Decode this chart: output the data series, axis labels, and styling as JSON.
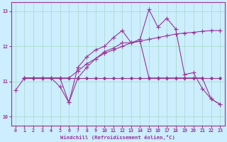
{
  "xlabel": "Windchill (Refroidissement éolien,°C)",
  "bg_color": "#cceeff",
  "line_color": "#993399",
  "grid_color": "#aaddcc",
  "xlim": [
    -0.5,
    23.5
  ],
  "ylim": [
    9.75,
    13.25
  ],
  "xticks": [
    0,
    1,
    2,
    3,
    4,
    5,
    6,
    7,
    8,
    9,
    10,
    11,
    12,
    13,
    14,
    15,
    16,
    17,
    18,
    19,
    20,
    21,
    22,
    23
  ],
  "yticks": [
    10,
    11,
    12,
    13
  ],
  "series": [
    {
      "x": [
        0,
        1,
        2,
        3,
        4,
        5,
        6,
        7,
        8,
        9,
        10,
        11,
        12,
        13,
        14,
        15,
        16,
        17,
        18,
        19,
        20,
        21,
        22,
        23
      ],
      "y": [
        10.75,
        11.1,
        11.1,
        11.1,
        11.1,
        11.1,
        10.4,
        11.4,
        11.7,
        11.9,
        12.0,
        12.25,
        12.45,
        12.1,
        12.2,
        13.05,
        12.55,
        12.8,
        12.5,
        11.2,
        11.25,
        10.8,
        10.5,
        10.35
      ]
    },
    {
      "x": [
        1,
        2,
        3,
        4,
        5,
        6,
        7,
        8,
        9,
        10,
        11,
        12,
        13,
        14,
        15,
        16,
        17,
        18,
        19,
        20,
        21,
        22,
        23
      ],
      "y": [
        11.1,
        11.1,
        11.1,
        11.1,
        11.1,
        11.1,
        11.1,
        11.1,
        11.1,
        11.1,
        11.1,
        11.1,
        11.1,
        11.1,
        11.1,
        11.1,
        11.1,
        11.1,
        11.1,
        11.1,
        11.1,
        11.1,
        11.1
      ]
    },
    {
      "x": [
        1,
        2,
        3,
        4,
        5,
        6,
        7,
        8,
        9,
        10,
        11,
        12,
        13,
        14,
        15,
        16,
        17,
        18,
        19,
        20,
        21,
        22,
        23
      ],
      "y": [
        11.1,
        11.1,
        11.1,
        11.1,
        11.1,
        11.1,
        11.3,
        11.5,
        11.65,
        11.8,
        11.9,
        12.0,
        12.1,
        12.15,
        12.2,
        12.25,
        12.3,
        12.35,
        12.38,
        12.4,
        12.43,
        12.45,
        12.45
      ]
    },
    {
      "x": [
        1,
        2,
        3,
        4,
        5,
        6,
        7,
        8,
        9,
        10,
        11,
        12,
        13,
        14,
        15,
        16,
        17,
        18,
        19,
        20,
        21,
        22,
        23
      ],
      "y": [
        11.1,
        11.1,
        11.1,
        11.1,
        10.85,
        10.4,
        11.1,
        11.4,
        11.65,
        11.85,
        11.95,
        12.1,
        12.1,
        12.15,
        11.1,
        11.1,
        11.1,
        11.1,
        11.1,
        11.1,
        11.1,
        10.5,
        10.35
      ]
    }
  ]
}
